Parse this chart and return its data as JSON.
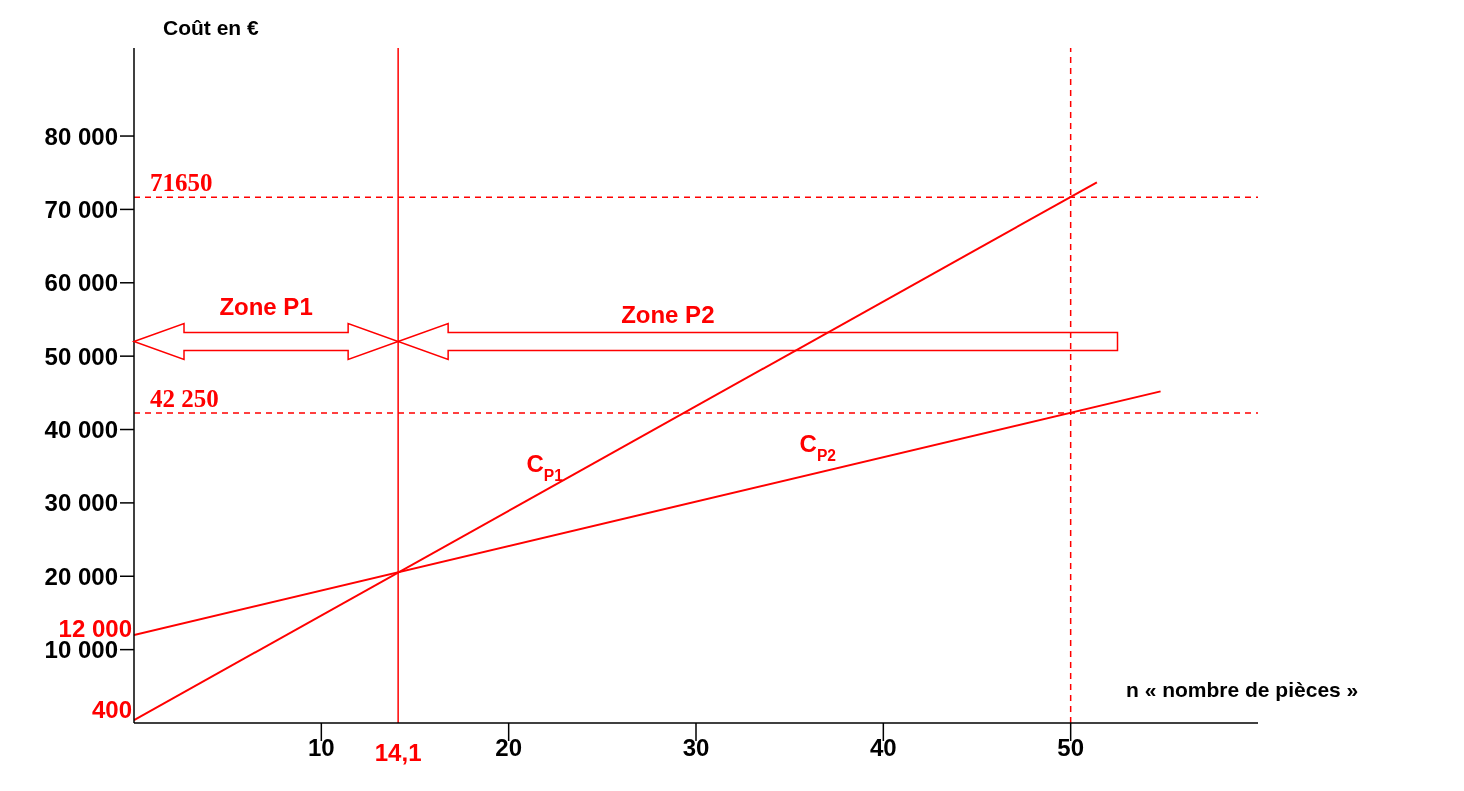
{
  "chart_data": {
    "type": "line",
    "xlabel": "n « nombre de pièces »",
    "ylabel": "Coût en €",
    "xlim": [
      0,
      60
    ],
    "ylim": [
      0,
      92000
    ],
    "xticks": [
      10,
      20,
      30,
      40,
      50
    ],
    "yticks": [
      {
        "value": 10000,
        "label": "10 000"
      },
      {
        "value": 20000,
        "label": "20 000"
      },
      {
        "value": 30000,
        "label": "30 000"
      },
      {
        "value": 40000,
        "label": "40 000"
      },
      {
        "value": 50000,
        "label": "50 000"
      },
      {
        "value": 60000,
        "label": "60 000"
      },
      {
        "value": 70000,
        "label": "70 000"
      },
      {
        "value": 80000,
        "label": "80 000"
      }
    ],
    "series": [
      {
        "name": "C$_{P1}$",
        "color": "#ff0000",
        "x": [
          0,
          51.4
        ],
        "values": [
          400,
          73700
        ]
      },
      {
        "name": "C$_{P2}$",
        "color": "#ff0000",
        "x": [
          0,
          54.8
        ],
        "values": [
          12000,
          45200
        ]
      }
    ],
    "ref_lines": [
      {
        "axis": "y",
        "value": 71650,
        "label": "71650",
        "color": "#ff0000",
        "line_style": "dashed"
      },
      {
        "axis": "y",
        "value": 42250,
        "label": "42 250",
        "color": "#ff0000",
        "line_style": "dashed"
      },
      {
        "axis": "x",
        "value": 50,
        "label": null,
        "color": "#ff0000",
        "line_style": "dashed"
      },
      {
        "axis": "x",
        "value": 14.1,
        "label": "14,1",
        "color": "#ff0000",
        "line_style": "solid"
      }
    ],
    "annotations": [
      {
        "text": "400",
        "x": 0,
        "y": 400
      },
      {
        "text": "12 000",
        "x": 0,
        "y": 12000
      },
      "Zone P1",
      "Zone P2"
    ],
    "grid": false,
    "legend": false,
    "marker": "none",
    "line_style": "solid"
  }
}
